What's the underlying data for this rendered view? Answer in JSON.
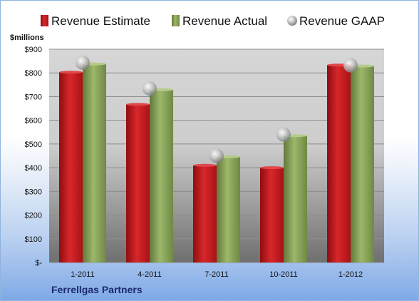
{
  "chart_data": {
    "type": "bar",
    "ylabel": "$millions",
    "categories": [
      "1-2011",
      "4-2011",
      "7-2011",
      "10-2011",
      "1-2012"
    ],
    "series": [
      {
        "name": "Revenue Estimate",
        "values": [
          803,
          667,
          410,
          400,
          833
        ],
        "color": "#c8191e"
      },
      {
        "name": "Revenue Actual",
        "values": [
          838,
          729,
          446,
          535,
          829
        ],
        "color": "#8aa65a"
      },
      {
        "name": "Revenue GAAP",
        "values": [
          843,
          734,
          450,
          540,
          832
        ],
        "color": "#b9b9b9",
        "marker": "sphere"
      }
    ],
    "ylim": [
      0,
      900
    ],
    "y_ticks": [
      {
        "value": 0,
        "label": "$-"
      },
      {
        "value": 100,
        "label": "$100"
      },
      {
        "value": 200,
        "label": "$200"
      },
      {
        "value": 300,
        "label": "$300"
      },
      {
        "value": 400,
        "label": "$400"
      },
      {
        "value": 500,
        "label": "$500"
      },
      {
        "value": 600,
        "label": "$600"
      },
      {
        "value": 700,
        "label": "$700"
      },
      {
        "value": 800,
        "label": "$800"
      },
      {
        "value": 900,
        "label": "$900"
      }
    ],
    "grid": true,
    "legend": "top"
  },
  "company": "Ferrellgas Partners"
}
